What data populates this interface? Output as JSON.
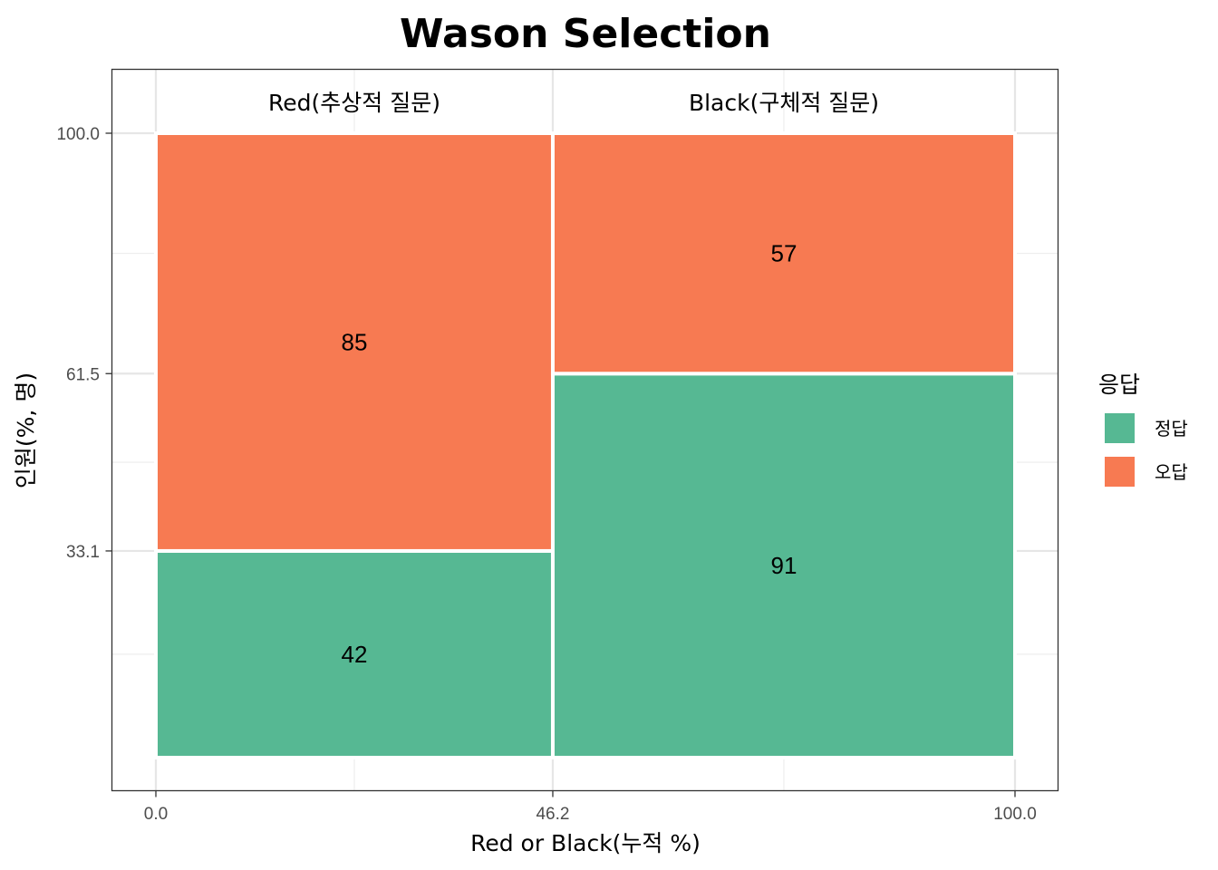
{
  "chart_data": {
    "type": "mosaic",
    "title": "Wason Selection",
    "xlabel": "Red or Black(누적 %)",
    "ylabel": "인원(%, 명)",
    "x_ticks": [
      "0.0",
      "46.2",
      "100.0"
    ],
    "y_ticks": [
      "33.1",
      "61.5",
      "100.0"
    ],
    "xlim": [
      0,
      100
    ],
    "ylim": [
      0,
      100
    ],
    "grid": true,
    "legend_position": "right",
    "legend_title": "응답",
    "columns": [
      {
        "label": "Red(추상적 질문)",
        "x_start": 0,
        "x_end": 46.2,
        "boundary": 33.1
      },
      {
        "label": "Black(구체적 질문)",
        "x_start": 46.2,
        "x_end": 100,
        "boundary": 61.5
      }
    ],
    "series": [
      {
        "name": "정답",
        "color": "#56b893",
        "values": [
          42,
          91
        ]
      },
      {
        "name": "오답",
        "color": "#f77a52",
        "values": [
          85,
          57
        ]
      }
    ]
  }
}
